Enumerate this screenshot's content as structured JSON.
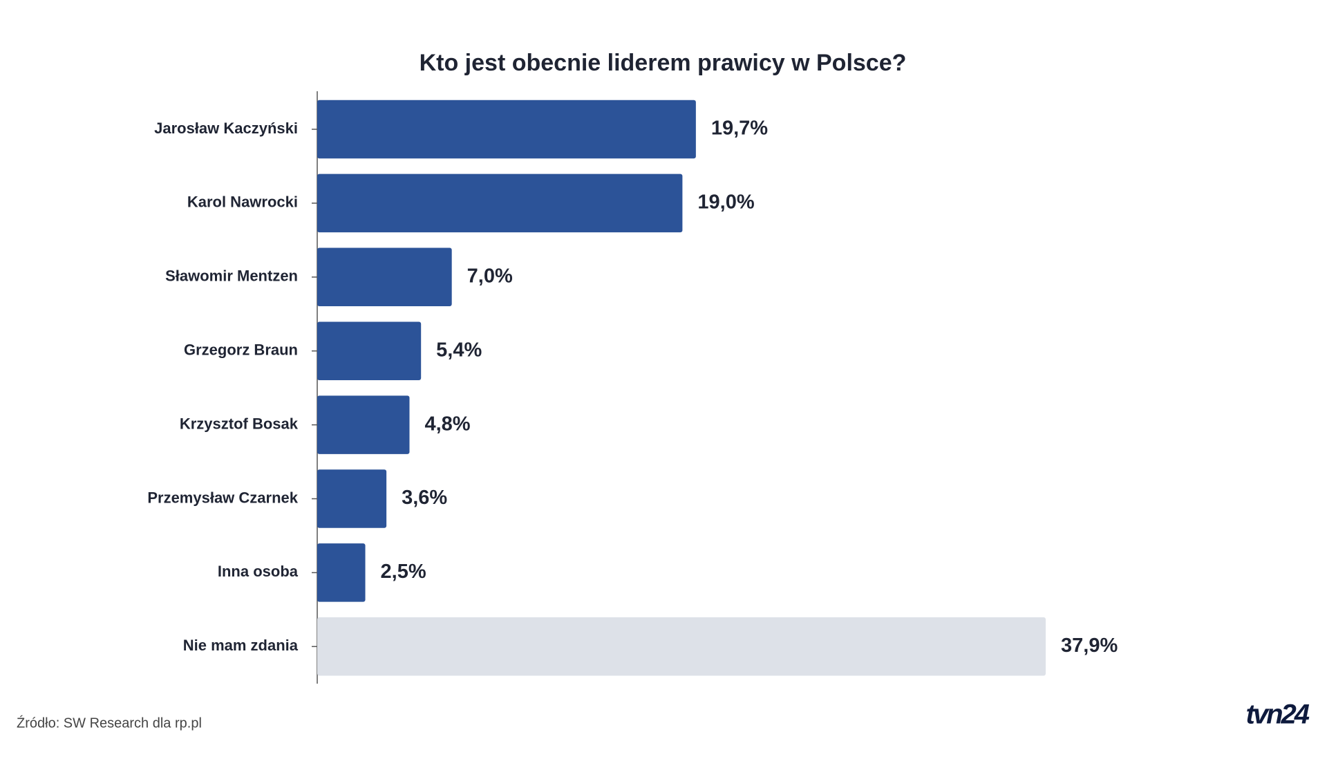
{
  "chart_data": {
    "type": "bar",
    "orientation": "horizontal",
    "title": "Kto jest obecnie liderem prawicy w Polsce?",
    "categories": [
      "Jarosław Kaczyński",
      "Karol Nawrocki",
      "Sławomir Mentzen",
      "Grzegorz Braun",
      "Krzysztof Bosak",
      "Przemysław Czarnek",
      "Inna osoba",
      "Nie mam zdania"
    ],
    "values": [
      19.7,
      19.0,
      7.0,
      5.4,
      4.8,
      3.6,
      2.5,
      37.9
    ],
    "value_labels": [
      "19,7%",
      "19,0%",
      "7,0%",
      "5,4%",
      "4,8%",
      "3,6%",
      "2,5%",
      "37,9%"
    ],
    "colors": [
      "#2c5398",
      "#2c5398",
      "#2c5398",
      "#2c5398",
      "#2c5398",
      "#2c5398",
      "#2c5398",
      "#dde1e8"
    ],
    "source": "Źródło: SW Research dla rp.pl",
    "logo": "tvn24"
  }
}
